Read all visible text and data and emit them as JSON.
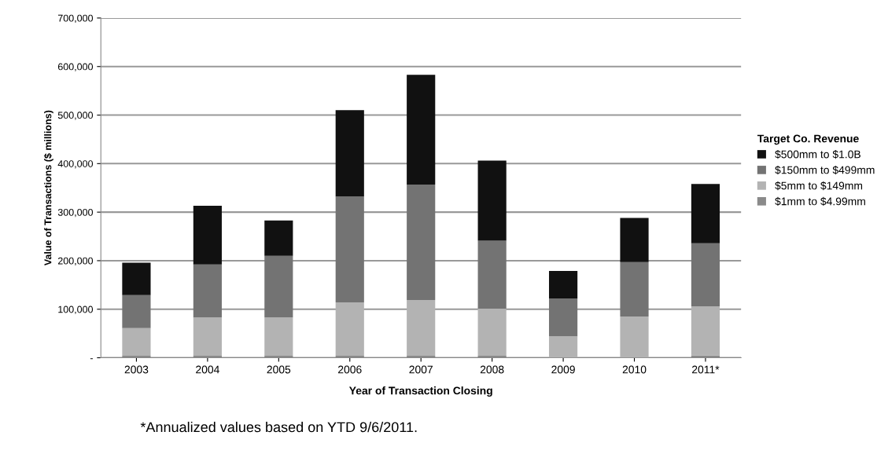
{
  "chart_data": {
    "type": "bar",
    "stacked": true,
    "xlabel": "Year of Transaction Closing",
    "ylabel": "Value of Transactions ($ millions)",
    "legend_title": "Target Co. Revenue",
    "categories": [
      "2003",
      "2004",
      "2005",
      "2006",
      "2007",
      "2008",
      "2009",
      "2010",
      "2011*"
    ],
    "series": [
      {
        "name": "$1mm to $4.99mm",
        "color": "#8a8a8a",
        "values": [
          4000,
          4000,
          4000,
          4000,
          4000,
          4000,
          null,
          null,
          5000
        ]
      },
      {
        "name": "$5mm to $149mm",
        "color": "#b3b3b3",
        "values": [
          57000,
          79000,
          79000,
          110000,
          115000,
          97000,
          44000,
          85000,
          101000
        ]
      },
      {
        "name": "$150mm to $499mm",
        "color": "#737373",
        "values": [
          68000,
          109000,
          127000,
          218000,
          238000,
          140000,
          78000,
          112000,
          130000
        ]
      },
      {
        "name": "$500mm to $1.0B",
        "color": "#111111",
        "values": [
          67000,
          121000,
          73000,
          178000,
          226000,
          165000,
          57000,
          91000,
          122000
        ]
      }
    ],
    "ylim": [
      0,
      700000
    ],
    "yticks": [
      {
        "value": 0,
        "label": "-"
      },
      {
        "value": 100000,
        "label": "100,000"
      },
      {
        "value": 200000,
        "label": "200,000"
      },
      {
        "value": 300000,
        "label": "300,000"
      },
      {
        "value": 400000,
        "label": "400,000"
      },
      {
        "value": 500000,
        "label": "500,000"
      },
      {
        "value": 600000,
        "label": "600,000"
      },
      {
        "value": 700000,
        "label": "700,000"
      }
    ],
    "grid": "y",
    "legend": "right",
    "annotations": [
      "*Annualized values based on YTD 9/6/2011."
    ]
  }
}
